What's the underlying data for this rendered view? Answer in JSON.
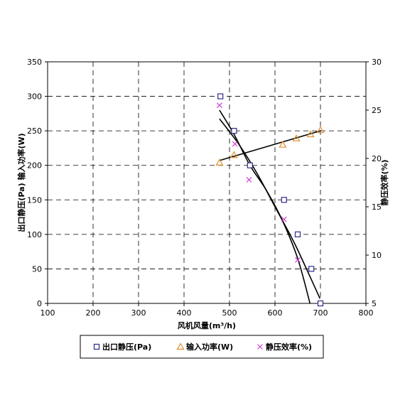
{
  "chart_data": {
    "type": "scatter",
    "x_axis": {
      "label": "风机风量(m³/h)",
      "ticks": [
        "100",
        "200",
        "300",
        "400",
        "500",
        "600",
        "700",
        "800"
      ],
      "range": [
        100,
        800
      ]
    },
    "y_axis_left": {
      "label": "出口静压(Pa) 输入功率(W)",
      "ticks": [
        "0",
        "50",
        "100",
        "150",
        "200",
        "250",
        "300",
        "350"
      ],
      "range": [
        0,
        350
      ]
    },
    "y_axis_right": {
      "label": "静压效率(%)",
      "ticks": [
        "5",
        "10",
        "15",
        "20",
        "25",
        "30"
      ],
      "range": [
        5,
        30
      ]
    },
    "grid": true,
    "legend_position": "bottom",
    "series": [
      {
        "name": "出口静压(Pa)",
        "axis": "left",
        "marker": "square",
        "color": "#2b2b8c",
        "points": [
          [
            480,
            300
          ],
          [
            510,
            250
          ],
          [
            545,
            200
          ],
          [
            620,
            150
          ],
          [
            650,
            100
          ],
          [
            680,
            50
          ],
          [
            700,
            0
          ]
        ],
        "fit": [
          [
            478,
            280
          ],
          [
            510,
            245
          ],
          [
            545,
            200
          ],
          [
            580,
            165
          ],
          [
            615,
            122
          ],
          [
            650,
            65
          ],
          [
            677,
            0
          ]
        ]
      },
      {
        "name": "输入功率(W)",
        "axis": "left",
        "marker": "triangle",
        "color": "#e0902e",
        "points": [
          [
            478,
            204
          ],
          [
            510,
            215
          ],
          [
            617,
            230
          ],
          [
            647,
            239
          ],
          [
            678,
            245
          ],
          [
            700,
            251
          ]
        ],
        "fit": [
          [
            478,
            207
          ],
          [
            700,
            250
          ]
        ]
      },
      {
        "name": "静压效率(%)",
        "axis": "right",
        "marker": "x",
        "color": "#d040d0",
        "points": [
          [
            478,
            25.5
          ],
          [
            512,
            21.5
          ],
          [
            543,
            17.8
          ],
          [
            620,
            13.7
          ],
          [
            650,
            9.5
          ]
        ],
        "fit": [
          [
            478,
            24.1
          ],
          [
            520,
            21.5
          ],
          [
            560,
            18.5
          ],
          [
            600,
            15
          ],
          [
            640,
            11.5
          ],
          [
            670,
            8.5
          ],
          [
            699,
            5.5
          ]
        ]
      }
    ]
  }
}
